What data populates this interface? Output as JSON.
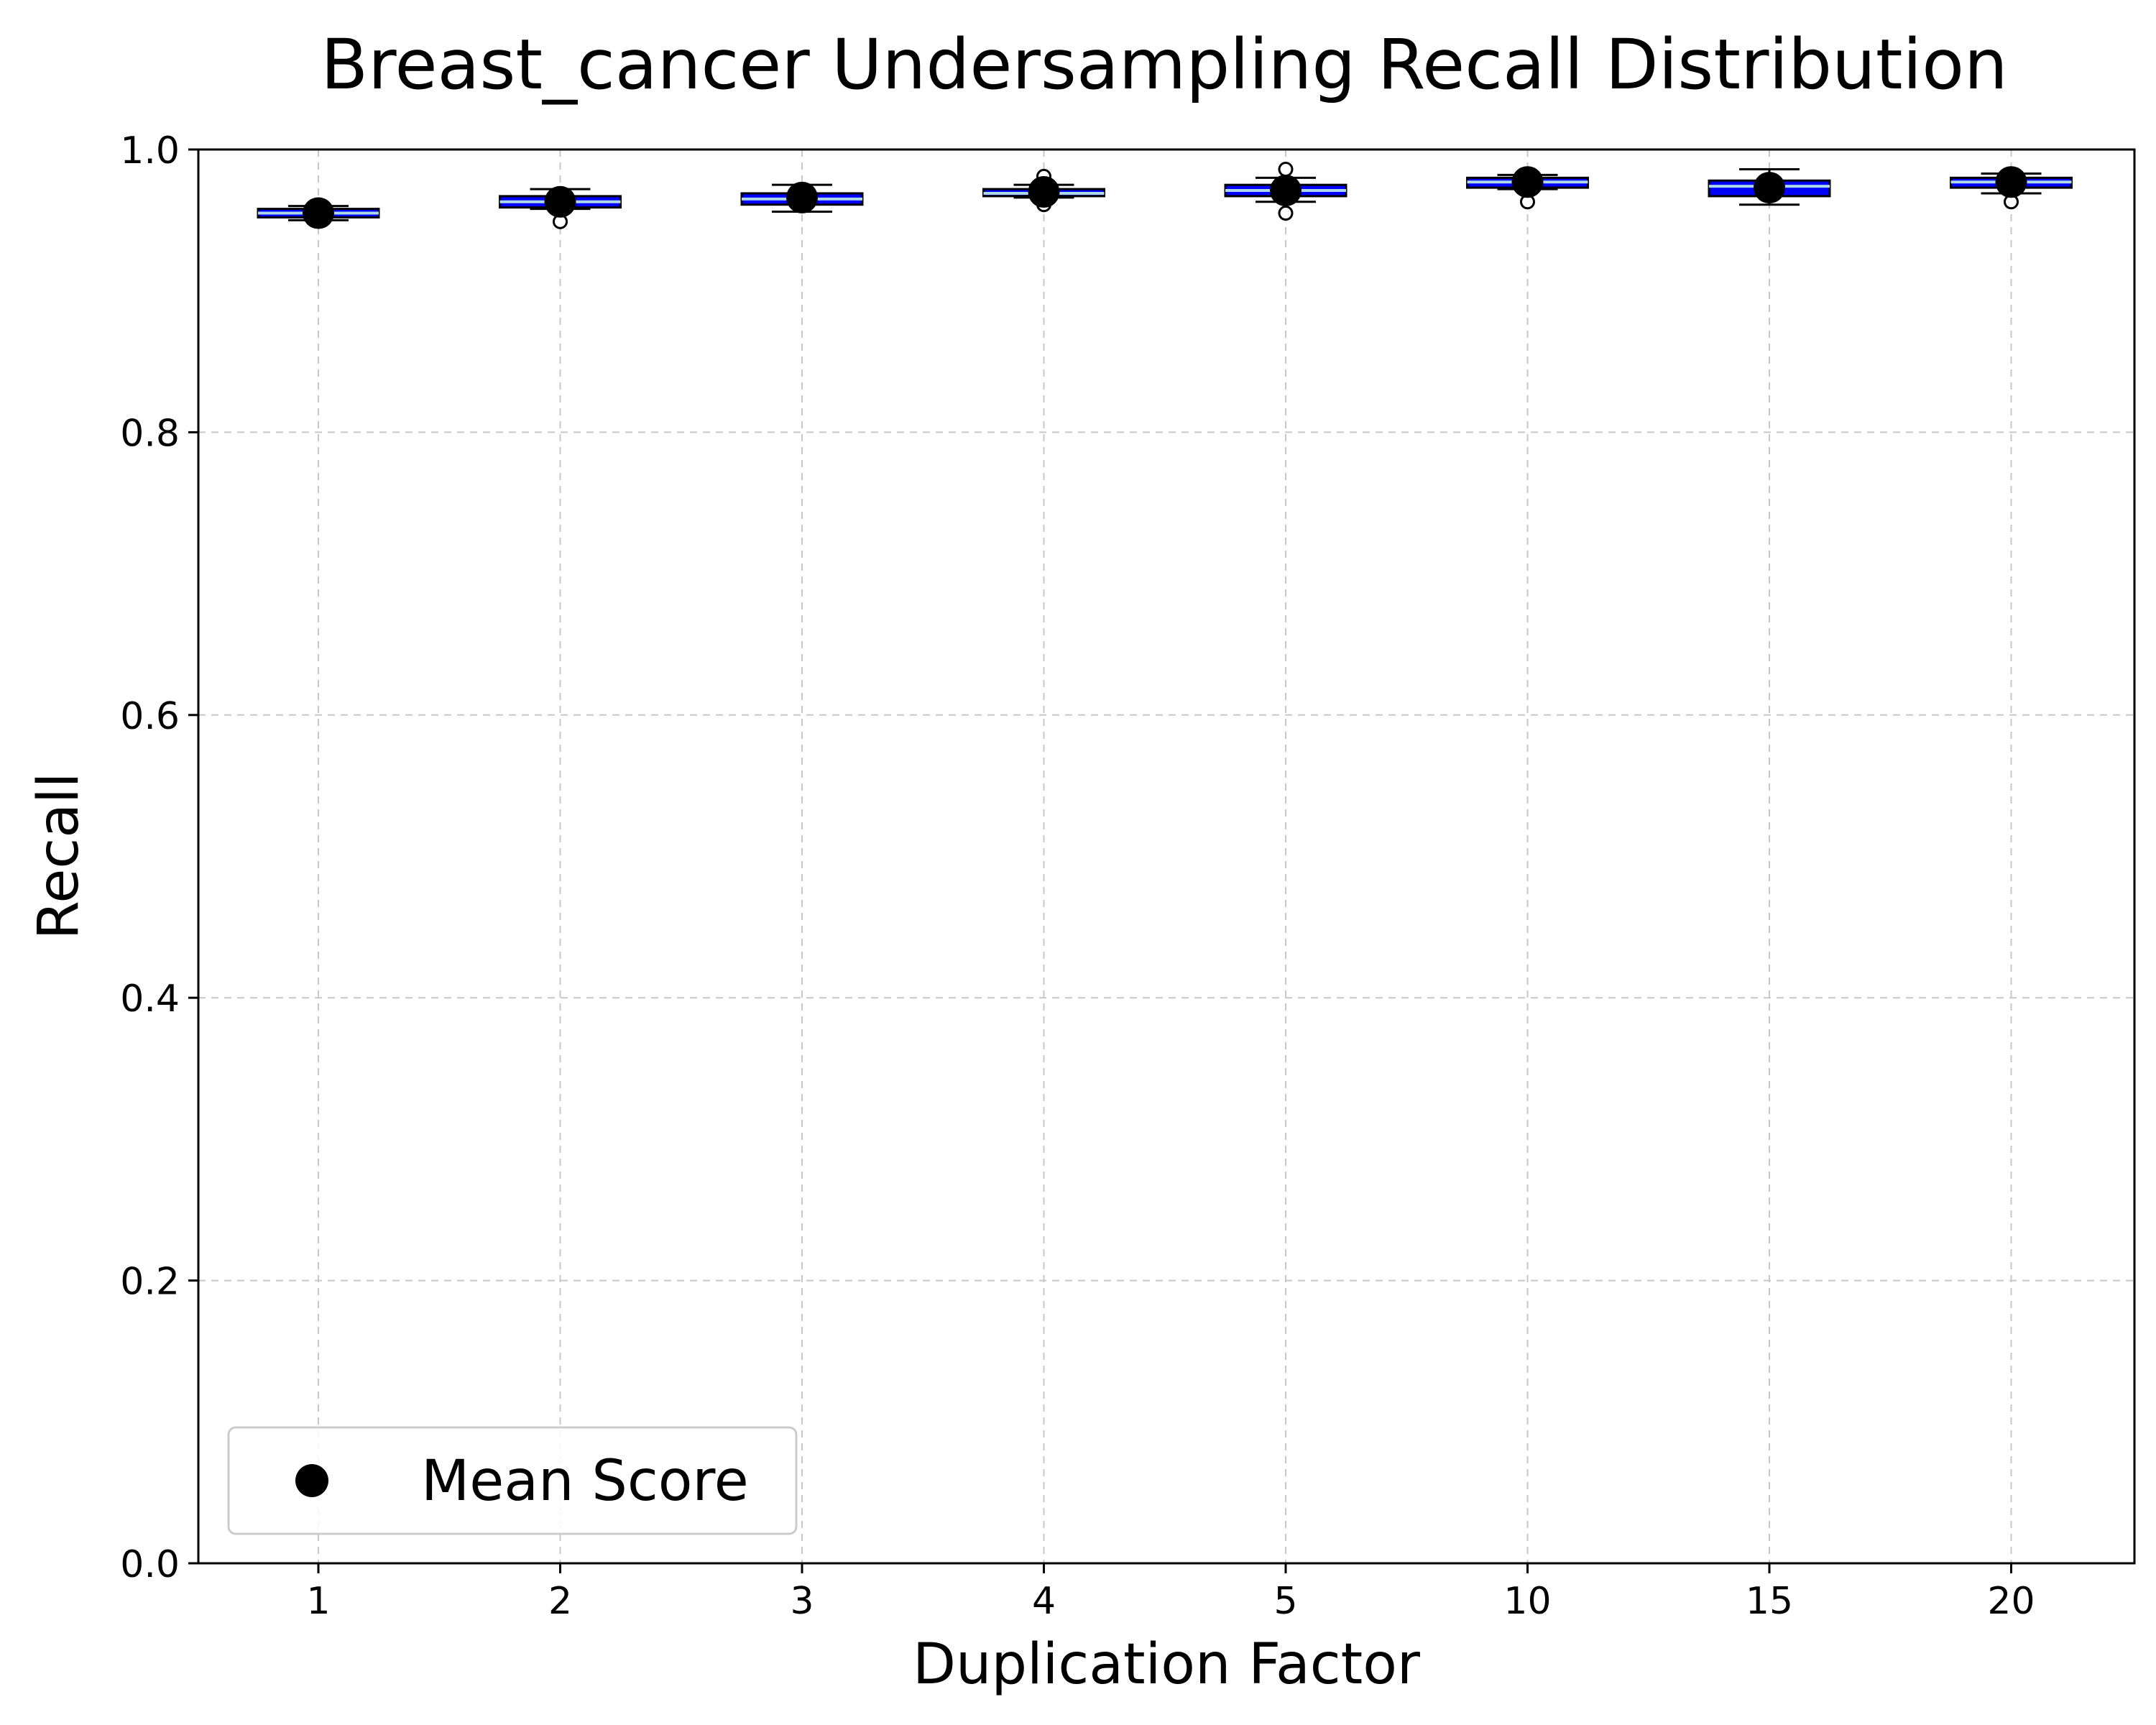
{
  "chart_data": {
    "type": "box",
    "title": "Breast_cancer Undersampling Recall Distribution",
    "xlabel": "Duplication Factor",
    "ylabel": "Recall",
    "ylim": [
      0,
      1
    ],
    "yticks": [
      "0.0",
      "0.2",
      "0.4",
      "0.6",
      "0.8",
      "1.0"
    ],
    "ytick_values": [
      0,
      0.2,
      0.4,
      0.6,
      0.8,
      1.0
    ],
    "categories": [
      "1",
      "2",
      "3",
      "4",
      "5",
      "10",
      "15",
      "20"
    ],
    "grid": true,
    "legend": {
      "placement": "lower-left",
      "entries": [
        "Mean Score"
      ]
    },
    "colors": {
      "box_fill": "#0000ff",
      "median": "#add8e6",
      "mean_marker": "#000000",
      "grid": "#c8c8c8"
    },
    "boxes": [
      {
        "category": "1",
        "whisker_low": 0.95,
        "q1": 0.952,
        "median": 0.955,
        "q3": 0.958,
        "whisker_high": 0.96,
        "mean": 0.955,
        "outliers": []
      },
      {
        "category": "2",
        "whisker_low": 0.958,
        "q1": 0.959,
        "median": 0.963,
        "q3": 0.967,
        "whisker_high": 0.972,
        "mean": 0.963,
        "outliers": [
          0.949
        ]
      },
      {
        "category": "3",
        "whisker_low": 0.956,
        "q1": 0.961,
        "median": 0.965,
        "q3": 0.969,
        "whisker_high": 0.975,
        "mean": 0.966,
        "outliers": []
      },
      {
        "category": "4",
        "whisker_low": 0.966,
        "q1": 0.967,
        "median": 0.969,
        "q3": 0.972,
        "whisker_high": 0.975,
        "mean": 0.97,
        "outliers": [
          0.961,
          0.981
        ]
      },
      {
        "category": "5",
        "whisker_low": 0.963,
        "q1": 0.967,
        "median": 0.971,
        "q3": 0.975,
        "whisker_high": 0.98,
        "mean": 0.971,
        "outliers": [
          0.955,
          0.986
        ]
      },
      {
        "category": "10",
        "whisker_low": 0.972,
        "q1": 0.973,
        "median": 0.977,
        "q3": 0.98,
        "whisker_high": 0.982,
        "mean": 0.977,
        "outliers": [
          0.963
        ]
      },
      {
        "category": "15",
        "whisker_low": 0.961,
        "q1": 0.967,
        "median": 0.974,
        "q3": 0.978,
        "whisker_high": 0.986,
        "mean": 0.973,
        "outliers": []
      },
      {
        "category": "20",
        "whisker_low": 0.969,
        "q1": 0.973,
        "median": 0.977,
        "q3": 0.98,
        "whisker_high": 0.983,
        "mean": 0.977,
        "outliers": [
          0.963
        ]
      }
    ]
  }
}
